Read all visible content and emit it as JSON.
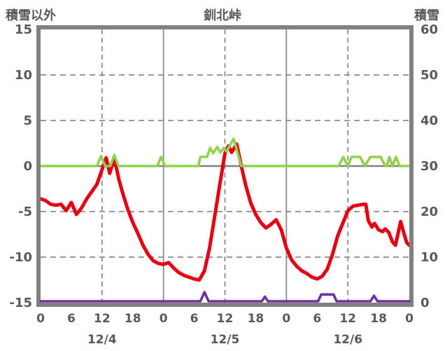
{
  "title": "釧北峠",
  "left_axis": {
    "label": "積雪以外",
    "ticks": [
      15,
      10,
      5,
      0,
      -5,
      -10,
      -15
    ],
    "min": -15,
    "max": 15
  },
  "right_axis": {
    "label": "積雪",
    "ticks": [
      60,
      50,
      40,
      30,
      20,
      10,
      0
    ],
    "min": 0,
    "max": 60
  },
  "x_axis": {
    "hour_ticks": [
      0,
      6,
      12,
      18,
      24,
      30,
      36,
      42,
      48,
      54,
      60,
      66,
      72
    ],
    "hour_labels": [
      "0",
      "6",
      "12",
      "18",
      "0",
      "6",
      "12",
      "18",
      "0",
      "6",
      "12",
      "18",
      "0"
    ],
    "day_labels": [
      {
        "label": "12/4",
        "hour": 12
      },
      {
        "label": "12/5",
        "hour": 36
      },
      {
        "label": "12/6",
        "hour": 60
      }
    ],
    "solid_gridline_hours": [
      24,
      48
    ],
    "dashed_gridline_hours": [
      12,
      36,
      60
    ]
  },
  "colors": {
    "red": "#e60012",
    "green": "#92d050",
    "purple": "#7030a0",
    "frame": "#808080",
    "grid": "#8c8c8c",
    "text": "#595959",
    "background": "#ffffff"
  },
  "chart_data": {
    "type": "line",
    "x_unit": "hours from 12/4 00:00",
    "x_range": [
      0,
      72
    ],
    "left_ylim": [
      -15,
      15
    ],
    "right_ylim": [
      0,
      60
    ],
    "grid": {
      "horizontal_dashed_left_values": [
        10,
        5,
        -5,
        -10
      ],
      "zero_line_left_value": 0
    },
    "series": [
      {
        "id": "red",
        "axis": "left",
        "color_key": "red",
        "points": [
          [
            0,
            -3.6
          ],
          [
            1,
            -3.8
          ],
          [
            2,
            -4.2
          ],
          [
            3,
            -4.3
          ],
          [
            4,
            -4.2
          ],
          [
            5,
            -4.9
          ],
          [
            6,
            -4.0
          ],
          [
            7,
            -5.3
          ],
          [
            8,
            -4.6
          ],
          [
            9,
            -3.6
          ],
          [
            10,
            -2.8
          ],
          [
            11,
            -2.0
          ],
          [
            12,
            -0.4
          ],
          [
            12.8,
            0.9
          ],
          [
            13.5,
            -0.8
          ],
          [
            14.4,
            0.9
          ],
          [
            15.3,
            -1.5
          ],
          [
            16,
            -2.9
          ],
          [
            17,
            -4.7
          ],
          [
            18,
            -6.2
          ],
          [
            19,
            -7.4
          ],
          [
            20,
            -8.7
          ],
          [
            21,
            -9.7
          ],
          [
            22,
            -10.4
          ],
          [
            23,
            -10.7
          ],
          [
            24,
            -10.8
          ],
          [
            25,
            -10.6
          ],
          [
            26,
            -11.2
          ],
          [
            27,
            -11.7
          ],
          [
            28,
            -12.0
          ],
          [
            29,
            -12.2
          ],
          [
            30,
            -12.4
          ],
          [
            31,
            -12.5
          ],
          [
            32,
            -11.5
          ],
          [
            33,
            -9.0
          ],
          [
            34,
            -5.5
          ],
          [
            35,
            -2.0
          ],
          [
            36,
            1.4
          ],
          [
            36.7,
            2.2
          ],
          [
            37.3,
            1.5
          ],
          [
            38.3,
            2.4
          ],
          [
            39.2,
            0.0
          ],
          [
            40,
            -2.0
          ],
          [
            41,
            -4.0
          ],
          [
            42,
            -5.3
          ],
          [
            43,
            -6.2
          ],
          [
            44,
            -6.8
          ],
          [
            45,
            -6.4
          ],
          [
            46,
            -5.9
          ],
          [
            47,
            -7.0
          ],
          [
            48,
            -9.0
          ],
          [
            49,
            -10.3
          ],
          [
            50,
            -11.0
          ],
          [
            51,
            -11.5
          ],
          [
            52,
            -11.8
          ],
          [
            53,
            -12.2
          ],
          [
            54,
            -12.4
          ],
          [
            55,
            -12.1
          ],
          [
            56,
            -11.3
          ],
          [
            57,
            -9.7
          ],
          [
            58,
            -7.7
          ],
          [
            59,
            -6.3
          ],
          [
            60,
            -4.9
          ],
          [
            61,
            -4.4
          ],
          [
            62,
            -4.3
          ],
          [
            63,
            -4.2
          ],
          [
            63.5,
            -4.2
          ],
          [
            64,
            -6.0
          ],
          [
            64.7,
            -6.7
          ],
          [
            65.2,
            -6.3
          ],
          [
            66,
            -7.0
          ],
          [
            66.8,
            -7.2
          ],
          [
            67.3,
            -6.9
          ],
          [
            68,
            -7.3
          ],
          [
            68.7,
            -8.3
          ],
          [
            69.3,
            -8.7
          ],
          [
            70.3,
            -6.1
          ],
          [
            71,
            -7.5
          ],
          [
            71.5,
            -8.4
          ],
          [
            72,
            -8.7
          ]
        ]
      },
      {
        "id": "green",
        "axis": "left",
        "color_key": "green",
        "points": [
          [
            0,
            0
          ],
          [
            11,
            0
          ],
          [
            11.8,
            1.1
          ],
          [
            12.6,
            0
          ],
          [
            13.6,
            0
          ],
          [
            14.4,
            1.2
          ],
          [
            15.2,
            0
          ],
          [
            22.8,
            0
          ],
          [
            23.5,
            1.0
          ],
          [
            24.3,
            0
          ],
          [
            30.8,
            0
          ],
          [
            31.2,
            1.0
          ],
          [
            32.5,
            1.0
          ],
          [
            33.1,
            2.0
          ],
          [
            33.7,
            1.4
          ],
          [
            34.5,
            2.1
          ],
          [
            35.1,
            1.5
          ],
          [
            35.8,
            2.0
          ],
          [
            36.3,
            1.6
          ],
          [
            37.7,
            3.0
          ],
          [
            39.2,
            0
          ],
          [
            58.2,
            0
          ],
          [
            59.1,
            1.0
          ],
          [
            60,
            0
          ],
          [
            60.7,
            1.0
          ],
          [
            62.4,
            1.0
          ],
          [
            63.3,
            0
          ],
          [
            64.4,
            1.0
          ],
          [
            66.4,
            1.0
          ],
          [
            67.3,
            0
          ],
          [
            67.6,
            0
          ],
          [
            68.1,
            1.0
          ],
          [
            68.7,
            0
          ],
          [
            69.4,
            1.0
          ],
          [
            70.1,
            0
          ],
          [
            72,
            0
          ]
        ]
      },
      {
        "id": "purple",
        "axis": "right",
        "color_key": "purple",
        "points": [
          [
            0,
            0
          ],
          [
            31.2,
            0
          ],
          [
            32,
            2.0
          ],
          [
            32.8,
            0
          ],
          [
            43.2,
            0
          ],
          [
            43.8,
            1.0
          ],
          [
            44.4,
            0
          ],
          [
            54.2,
            0
          ],
          [
            54.8,
            1.5
          ],
          [
            57.2,
            1.5
          ],
          [
            57.8,
            0
          ],
          [
            64.4,
            0
          ],
          [
            65.1,
            1.2
          ],
          [
            65.8,
            0
          ],
          [
            72,
            0
          ]
        ]
      }
    ]
  }
}
